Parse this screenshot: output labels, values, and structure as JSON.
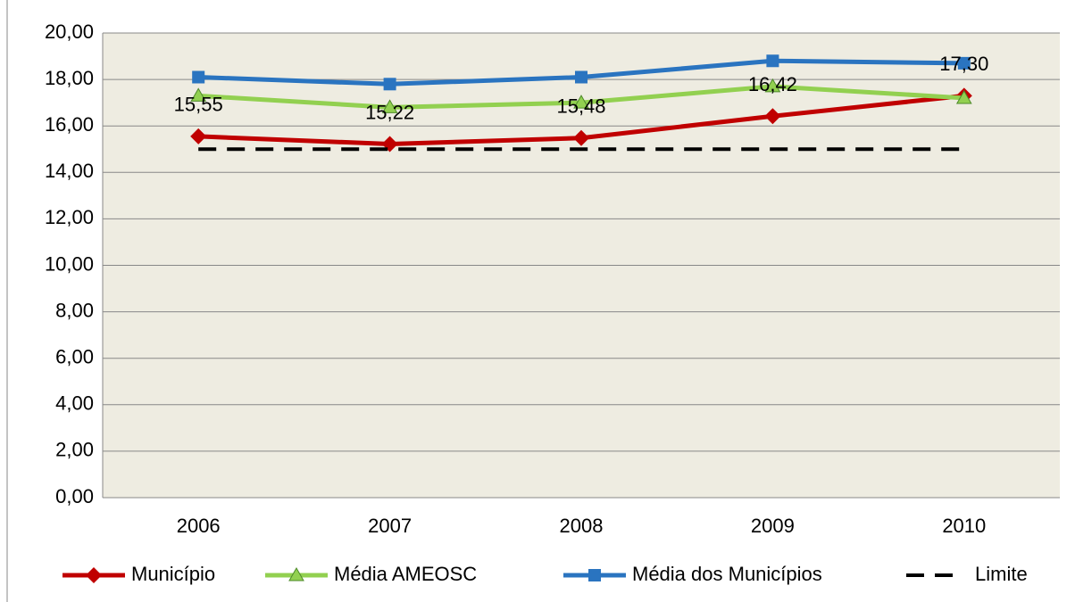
{
  "chart_data": {
    "type": "line",
    "categories": [
      "2006",
      "2007",
      "2008",
      "2009",
      "2010"
    ],
    "series": [
      {
        "name": "Município",
        "color": "#c00000",
        "marker": "diamond",
        "values": [
          15.55,
          15.22,
          15.48,
          16.42,
          17.3
        ],
        "value_labels": [
          "15,55",
          "15,22",
          "15,48",
          "16,42",
          "17,30"
        ]
      },
      {
        "name": "Média AMEOSC",
        "color": "#92d050",
        "marker": "triangle",
        "values": [
          17.3,
          16.8,
          17.0,
          17.7,
          17.2
        ]
      },
      {
        "name": "Média dos Municípios",
        "color": "#2a74c0",
        "marker": "square",
        "values": [
          18.1,
          17.8,
          18.1,
          18.8,
          18.7
        ]
      },
      {
        "name": "Limite",
        "color": "#000000",
        "dashed": true,
        "values": [
          15,
          15,
          15,
          15,
          15
        ]
      }
    ],
    "ylim": [
      0,
      20
    ],
    "yticks": [
      {
        "value": 0,
        "label": "0,00"
      },
      {
        "value": 2,
        "label": "2,00"
      },
      {
        "value": 4,
        "label": "4,00"
      },
      {
        "value": 6,
        "label": "6,00"
      },
      {
        "value": 8,
        "label": "8,00"
      },
      {
        "value": 10,
        "label": "10,00"
      },
      {
        "value": 12,
        "label": "12,00"
      },
      {
        "value": 14,
        "label": "14,00"
      },
      {
        "value": 16,
        "label": "16,00"
      },
      {
        "value": 18,
        "label": "18,00"
      },
      {
        "value": 20,
        "label": "20,00"
      }
    ],
    "grid": true,
    "plot_background": "#eeece1",
    "legend": "bottom"
  }
}
